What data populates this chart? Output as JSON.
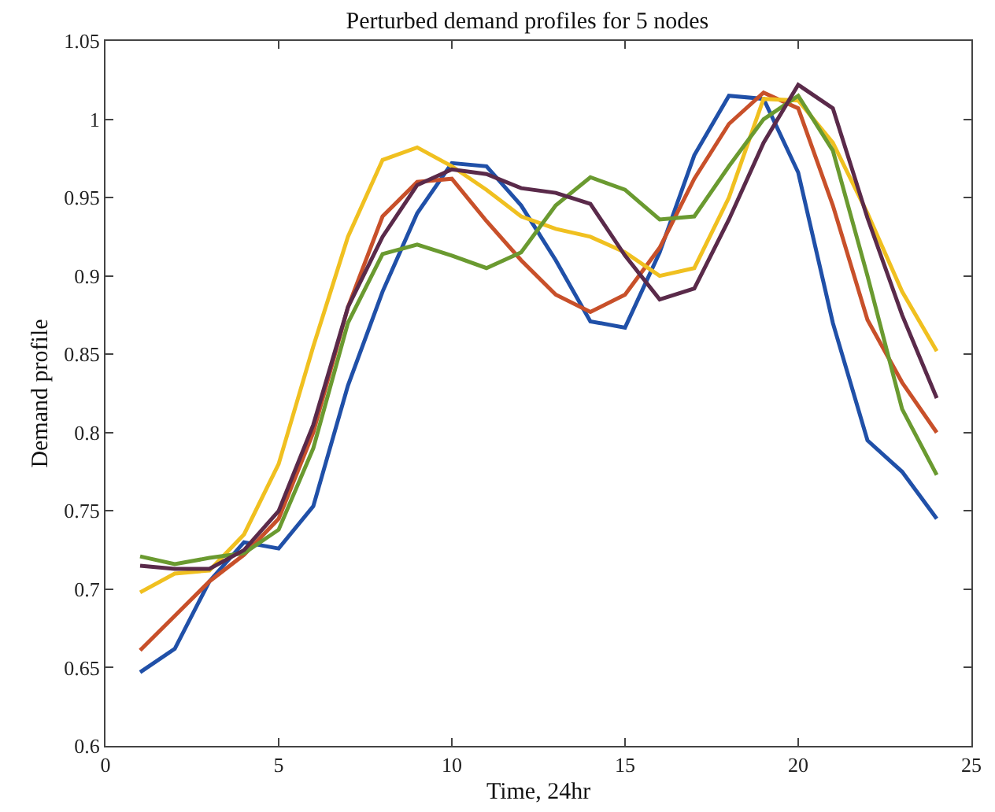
{
  "chart_data": {
    "type": "line",
    "title": "Perturbed demand profiles for 5 nodes",
    "xlabel": "Time, 24hr",
    "ylabel": "Demand profile",
    "x": [
      1,
      2,
      3,
      4,
      5,
      6,
      7,
      8,
      9,
      10,
      11,
      12,
      13,
      14,
      15,
      16,
      17,
      18,
      19,
      20,
      21,
      22,
      23,
      24
    ],
    "series": [
      {
        "color": "#2050a8",
        "values": [
          0.647,
          0.662,
          0.705,
          0.73,
          0.726,
          0.753,
          0.83,
          0.89,
          0.94,
          0.972,
          0.97,
          0.945,
          0.91,
          0.871,
          0.867,
          0.915,
          0.977,
          1.015,
          1.013,
          0.966,
          0.87,
          0.795,
          0.775,
          0.745
        ]
      },
      {
        "color": "#c8502a",
        "values": [
          0.661,
          0.683,
          0.705,
          0.722,
          0.745,
          0.8,
          0.88,
          0.938,
          0.96,
          0.962,
          0.935,
          0.91,
          0.888,
          0.877,
          0.888,
          0.918,
          0.962,
          0.997,
          1.017,
          1.007,
          0.945,
          0.872,
          0.832,
          0.8
        ]
      },
      {
        "color": "#f0c020",
        "values": [
          0.698,
          0.71,
          0.712,
          0.735,
          0.78,
          0.855,
          0.925,
          0.974,
          0.982,
          0.97,
          0.955,
          0.938,
          0.93,
          0.925,
          0.915,
          0.9,
          0.905,
          0.95,
          1.013,
          1.012,
          0.985,
          0.94,
          0.89,
          0.852
        ]
      },
      {
        "color": "#6a9a30",
        "values": [
          0.721,
          0.716,
          0.72,
          0.723,
          0.738,
          0.79,
          0.87,
          0.914,
          0.92,
          0.913,
          0.905,
          0.915,
          0.945,
          0.963,
          0.955,
          0.936,
          0.938,
          0.97,
          1.0,
          1.015,
          0.98,
          0.9,
          0.815,
          0.773
        ]
      },
      {
        "color": "#5a2a4a",
        "values": [
          0.715,
          0.713,
          0.713,
          0.725,
          0.75,
          0.805,
          0.88,
          0.925,
          0.958,
          0.968,
          0.965,
          0.956,
          0.953,
          0.946,
          0.913,
          0.885,
          0.892,
          0.936,
          0.985,
          1.022,
          1.007,
          0.937,
          0.875,
          0.822
        ]
      }
    ],
    "xlim": [
      0,
      25
    ],
    "xticks": [
      0,
      5,
      10,
      15,
      20,
      25
    ],
    "ylim": [
      0.6,
      1.05
    ],
    "yticks": [
      0.6,
      0.65,
      0.7,
      0.75,
      0.8,
      0.85,
      0.9,
      0.95,
      1,
      1.05
    ],
    "marker": "none",
    "line_style": "solid"
  }
}
